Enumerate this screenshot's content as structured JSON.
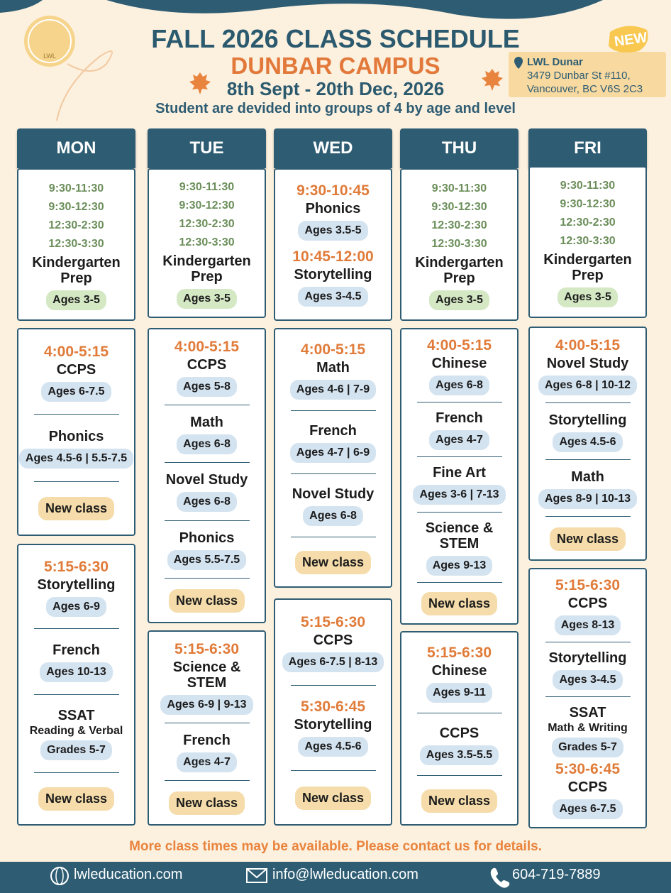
{
  "header": {
    "logo": "LWL",
    "title": "FALL 2026 CLASS SCHEDULE",
    "subtitle": "DUNBAR CAMPUS",
    "dates": "8th Sept - 20th Dec, 2026",
    "note": "Student are devided into groups of 4 by age and level",
    "badge": "NEW",
    "location": {
      "name": "LWL Dunar",
      "address1": "3479 Dunbar St #110,",
      "address2": "Vancouver, BC V6S 2C3"
    }
  },
  "days": [
    {
      "name": "MON",
      "blocks": [
        [
          {
            "times": [
              "9:30-11:30",
              "9:30-12:30",
              "12:30-2:30",
              "12:30-3:30"
            ],
            "class": "Kindergarten Prep",
            "tag": "Ages 3-5"
          }
        ],
        [
          {
            "time": "4:00-5:15",
            "class": "CCPS",
            "tag": "Ages 6-7.5"
          },
          {
            "class": "Phonics",
            "tag": "Ages 4.5-6 | 5.5-7.5"
          },
          {
            "tag": "New class"
          }
        ],
        [
          {
            "time": "5:15-6:30",
            "class": "Storytelling",
            "tag": "Ages 6-9"
          },
          {
            "class": "French",
            "tag": "Ages 10-13"
          },
          {
            "class": "SSAT",
            "detail": "Reading & Verbal",
            "tag": "Grades 5-7"
          },
          {
            "tag": "New class"
          }
        ]
      ]
    },
    {
      "name": "TUE",
      "blocks": [
        [
          {
            "times": [
              "9:30-11:30",
              "9:30-12:30",
              "12:30-2:30",
              "12:30-3:30"
            ],
            "class": "Kindergarten Prep",
            "tag": "Ages 3-5"
          }
        ],
        [
          {
            "time": "4:00-5:15",
            "class": "CCPS",
            "tag": "Ages 5-8"
          },
          {
            "class": "Math",
            "tag": "Ages 6-8"
          },
          {
            "class": "Novel Study",
            "tag": "Ages 6-8"
          },
          {
            "class": "Phonics",
            "tag": "Ages 5.5-7.5"
          },
          {
            "tag": "New class"
          }
        ],
        [
          {
            "time": "5:15-6:30",
            "class": "Science & STEM",
            "tag": "Ages 6-9 | 9-13"
          },
          {
            "class": "French",
            "tag": "Ages 4-7"
          },
          {
            "tag": "New class"
          }
        ]
      ]
    },
    {
      "name": "WED",
      "blocks": [
        [
          {
            "time": "9:30-10:45",
            "class": "Phonics",
            "tag": "Ages 3.5-5"
          },
          {
            "time": "10:45-12:00",
            "class": "Storytelling",
            "tag": "Ages 3-4.5"
          }
        ],
        [
          {
            "time": "4:00-5:15",
            "class": "Math",
            "tag": "Ages 4-6 | 7-9"
          },
          {
            "class": "French",
            "tag": "Ages 4-7 | 6-9"
          },
          {
            "class": "Novel Study",
            "tag": "Ages 6-8"
          },
          {
            "tag": "New class"
          }
        ],
        [
          {
            "time": "5:15-6:30",
            "class": "CCPS",
            "tag": "Ages 6-7.5 | 8-13"
          },
          {
            "time": "5:30-6:45",
            "class": "Storytelling",
            "tag": "Ages 4.5-6"
          },
          {
            "tag": "New class"
          }
        ]
      ]
    },
    {
      "name": "THU",
      "blocks": [
        [
          {
            "times": [
              "9:30-11:30",
              "9:30-12:30",
              "12:30-2:30",
              "12:30-3:30"
            ],
            "class": "Kindergarten Prep",
            "tag": "Ages 3-5"
          }
        ],
        [
          {
            "time": "4:00-5:15",
            "class": "Chinese",
            "tag": "Ages 6-8"
          },
          {
            "class": "French",
            "tag": "Ages 4-7"
          },
          {
            "class": "Fine Art",
            "tag": "Ages 3-6 | 7-13"
          },
          {
            "class": "Science & STEM",
            "tag": "Ages 9-13"
          },
          {
            "tag": "New class"
          }
        ],
        [
          {
            "time": "5:15-6:30",
            "class": "Chinese",
            "tag": "Ages 9-11"
          },
          {
            "class": "CCPS",
            "tag": "Ages 3.5-5.5"
          },
          {
            "tag": "New class"
          }
        ]
      ]
    },
    {
      "name": "FRI",
      "blocks": [
        [
          {
            "times": [
              "9:30-11:30",
              "9:30-12:30",
              "12:30-2:30",
              "12:30-3:30"
            ],
            "class": "Kindergarten Prep",
            "tag": "Ages 3-5"
          }
        ],
        [
          {
            "time": "4:00-5:15",
            "class": "Novel Study",
            "tag": "Ages 6-8 | 10-12"
          },
          {
            "class": "Storytelling",
            "tag": "Ages 4.5-6"
          },
          {
            "class": "Math",
            "tag": "Ages 8-9 | 10-13"
          },
          {
            "tag": "New class"
          }
        ],
        [
          {
            "time": "5:15-6:30",
            "class": "CCPS",
            "tag": "Ages 8-13"
          },
          {
            "class": "Storytelling",
            "tag": "Ages 3-4.5"
          },
          {
            "class": "SSAT",
            "detail": "Math & Writing",
            "tag": "Grades 5-7"
          },
          {
            "time": "5:30-6:45",
            "class": "CCPS",
            "tag": "Ages 6-7.5"
          }
        ]
      ]
    }
  ],
  "footer": {
    "note": "More class times may be available. Please contact us for details.",
    "website": "lwleducation.com",
    "email": "info@lwleducation.com",
    "phone": "604-719-7889"
  }
}
